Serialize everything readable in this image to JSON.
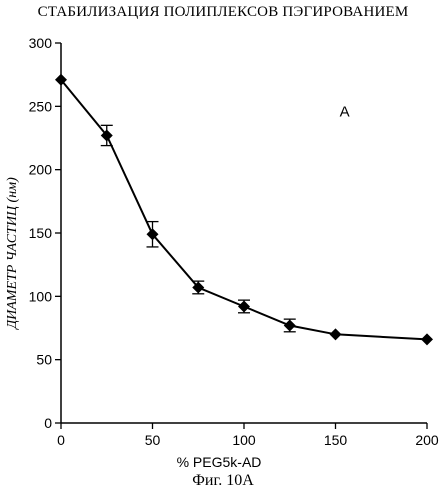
{
  "chart_data": {
    "type": "line",
    "title": "СТАБИЛИЗАЦИЯ ПОЛИПЛЕКСОВ ПЭГИРОВАНИЕМ",
    "xlabel": "% PEG5k-AD",
    "ylabel": "ДИАМЕТР ЧАСТИЦ (нм)",
    "panel_letter": "A",
    "xlim": [
      0,
      200
    ],
    "ylim": [
      0,
      300
    ],
    "x_ticks": [
      0,
      50,
      100,
      150,
      200
    ],
    "y_ticks": [
      0,
      50,
      100,
      150,
      200,
      250,
      300
    ],
    "series": [
      {
        "x": [
          0,
          25,
          50,
          75,
          100,
          125,
          150,
          200
        ],
        "y": [
          271,
          227,
          149,
          107,
          92,
          77,
          70,
          66
        ],
        "error": [
          0,
          8,
          10,
          5,
          5,
          5,
          0,
          0
        ],
        "marker": "diamond",
        "color": "#000000"
      }
    ],
    "grid": false,
    "legend": "none"
  },
  "caption": "Фиг. 10А"
}
